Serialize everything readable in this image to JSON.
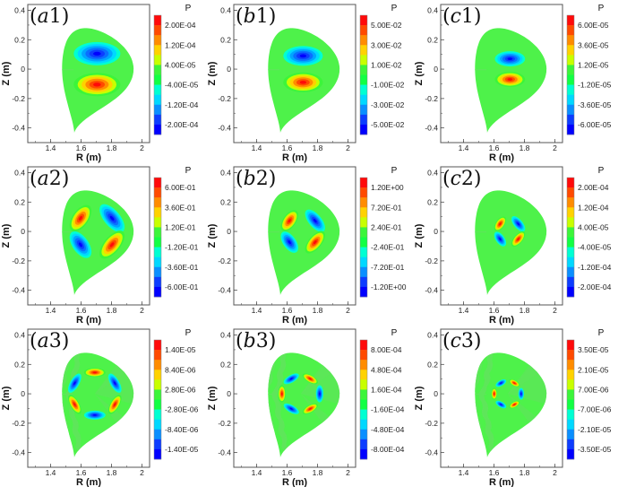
{
  "figure": {
    "rows": 3,
    "cols": 3,
    "colormap": [
      "#0000ff",
      "#0d3dff",
      "#0a6fff",
      "#00a5ff",
      "#00d8ff",
      "#00ffd2",
      "#12ff44",
      "#3cf53a",
      "#c8ff00",
      "#ffd200",
      "#ff8c00",
      "#ff4a00",
      "#ff0a0a"
    ],
    "background_green": "#4ef24a",
    "background_green_alt": "#5ee65a"
  },
  "chart_data": [
    {
      "type": "heatmap",
      "panel": "a1",
      "tag_letter": "a",
      "tag_number": "1",
      "mode": "m1",
      "amp": 1.0,
      "size": 1.0,
      "xlabel": "R (m)",
      "ylabel": "Z (m)",
      "xlim": [
        1.25,
        2.05
      ],
      "ylim": [
        -0.5,
        0.44
      ],
      "xticks": [
        "1.4",
        "1.6",
        "1.8",
        "2"
      ],
      "yticks": [
        "0.4",
        "0.2",
        "0",
        "-0.2",
        "-0.4"
      ],
      "colorbar": {
        "title": "P",
        "labels": [
          "2.00E-04",
          "1.20E-04",
          "4.00E-05",
          "-4.00E-05",
          "-1.20E-04",
          "-2.00E-04"
        ]
      }
    },
    {
      "type": "heatmap",
      "panel": "b1",
      "tag_letter": "b",
      "tag_number": "1",
      "mode": "m1",
      "amp": 1.0,
      "size": 0.85,
      "xlabel": "R (m)",
      "ylabel": "Z (m)",
      "xlim": [
        1.25,
        2.05
      ],
      "ylim": [
        -0.5,
        0.44
      ],
      "xticks": [
        "1.4",
        "1.6",
        "1.8",
        "2"
      ],
      "yticks": [
        "0.4",
        "0.2",
        "0",
        "-0.2",
        "-0.4"
      ],
      "colorbar": {
        "title": "P",
        "labels": [
          "5.00E-02",
          "3.00E-02",
          "1.00E-02",
          "-1.00E-02",
          "-3.00E-02",
          "-5.00E-02"
        ]
      }
    },
    {
      "type": "heatmap",
      "panel": "c1",
      "tag_letter": "c",
      "tag_number": "1",
      "mode": "m1",
      "amp": 1.0,
      "size": 0.65,
      "xlabel": "R (m)",
      "ylabel": "Z (m)",
      "xlim": [
        1.25,
        2.05
      ],
      "ylim": [
        -0.5,
        0.44
      ],
      "xticks": [
        "1.4",
        "1.6",
        "1.8",
        "2"
      ],
      "yticks": [
        "0.4",
        "0.2",
        "0",
        "-0.2",
        "-0.4"
      ],
      "colorbar": {
        "title": "P",
        "labels": [
          "6.00E-05",
          "3.60E-05",
          "1.20E-05",
          "-1.20E-05",
          "-3.60E-05",
          "-6.00E-05"
        ]
      }
    },
    {
      "type": "heatmap",
      "panel": "a2",
      "tag_letter": "a",
      "tag_number": "2",
      "mode": "m2",
      "amp": 1.0,
      "size": 1.0,
      "xlabel": "R (m)",
      "ylabel": "Z (m)",
      "xlim": [
        1.25,
        2.05
      ],
      "ylim": [
        -0.5,
        0.44
      ],
      "xticks": [
        "1.4",
        "1.6",
        "1.8",
        "2"
      ],
      "yticks": [
        "0.4",
        "0.2",
        "0",
        "-0.2",
        "-0.4"
      ],
      "colorbar": {
        "title": "P",
        "labels": [
          "6.00E-01",
          "3.60E-01",
          "1.20E-01",
          "-1.20E-01",
          "-3.60E-01",
          "-6.00E-01"
        ]
      }
    },
    {
      "type": "heatmap",
      "panel": "b2",
      "tag_letter": "b",
      "tag_number": "2",
      "mode": "m2",
      "amp": 1.0,
      "size": 0.8,
      "xlabel": "R (m)",
      "ylabel": "Z (m)",
      "xlim": [
        1.25,
        2.05
      ],
      "ylim": [
        -0.5,
        0.44
      ],
      "xticks": [
        "1.4",
        "1.6",
        "1.8",
        "2"
      ],
      "yticks": [
        "0.4",
        "0.2",
        "0",
        "-0.2",
        "-0.4"
      ],
      "colorbar": {
        "title": "P",
        "labels": [
          "1.20E+00",
          "7.20E-01",
          "2.40E-01",
          "-2.40E-01",
          "-7.20E-01",
          "-1.20E+00"
        ]
      }
    },
    {
      "type": "heatmap",
      "panel": "c2",
      "tag_letter": "c",
      "tag_number": "2",
      "mode": "m2",
      "amp": 1.0,
      "size": 0.55,
      "xlabel": "R (m)",
      "ylabel": "Z (m)",
      "xlim": [
        1.25,
        2.05
      ],
      "ylim": [
        -0.5,
        0.44
      ],
      "xticks": [
        "1.4",
        "1.6",
        "1.8",
        "2"
      ],
      "yticks": [
        "0.4",
        "0.2",
        "0",
        "-0.2",
        "-0.4"
      ],
      "colorbar": {
        "title": "P",
        "labels": [
          "2.00E-04",
          "1.20E-04",
          "4.00E-05",
          "-4.00E-05",
          "-1.20E-04",
          "-2.00E-04"
        ]
      }
    },
    {
      "type": "heatmap",
      "panel": "a3",
      "tag_letter": "a",
      "tag_number": "3",
      "mode": "m3",
      "amp": 1.0,
      "size": 1.0,
      "xlabel": "R (m)",
      "ylabel": "Z (m)",
      "xlim": [
        1.25,
        2.05
      ],
      "ylim": [
        -0.5,
        0.44
      ],
      "xticks": [
        "1.4",
        "1.6",
        "1.8",
        "2"
      ],
      "yticks": [
        "0.4",
        "0.2",
        "0",
        "-0.2",
        "-0.4"
      ],
      "colorbar": {
        "title": "P",
        "labels": [
          "1.40E-05",
          "8.40E-06",
          "2.80E-06",
          "-2.80E-06",
          "-8.40E-06",
          "-1.40E-05"
        ]
      }
    },
    {
      "type": "heatmap",
      "panel": "b3",
      "tag_letter": "b",
      "tag_number": "3",
      "mode": "m3b",
      "amp": 1.0,
      "size": 0.8,
      "xlabel": "R (m)",
      "ylabel": "Z (m)",
      "xlim": [
        1.25,
        2.05
      ],
      "ylim": [
        -0.5,
        0.44
      ],
      "xticks": [
        "1.4",
        "1.6",
        "1.8",
        "2"
      ],
      "yticks": [
        "0.4",
        "0.2",
        "0",
        "-0.2",
        "-0.4"
      ],
      "colorbar": {
        "title": "P",
        "labels": [
          "8.00E-04",
          "4.80E-04",
          "1.60E-04",
          "-1.60E-04",
          "-4.80E-04",
          "-8.00E-04"
        ]
      }
    },
    {
      "type": "heatmap",
      "panel": "c3",
      "tag_letter": "c",
      "tag_number": "3",
      "mode": "m3b",
      "amp": 1.0,
      "size": 0.55,
      "xlabel": "R (m)",
      "ylabel": "Z (m)",
      "xlim": [
        1.25,
        2.05
      ],
      "ylim": [
        -0.5,
        0.44
      ],
      "xticks": [
        "1.4",
        "1.6",
        "1.8",
        "2"
      ],
      "yticks": [
        "0.4",
        "0.2",
        "0",
        "-0.2",
        "-0.4"
      ],
      "colorbar": {
        "title": "P",
        "labels": [
          "3.50E-05",
          "2.10E-05",
          "7.00E-06",
          "-7.00E-06",
          "-2.10E-05",
          "-3.50E-05"
        ]
      }
    }
  ]
}
